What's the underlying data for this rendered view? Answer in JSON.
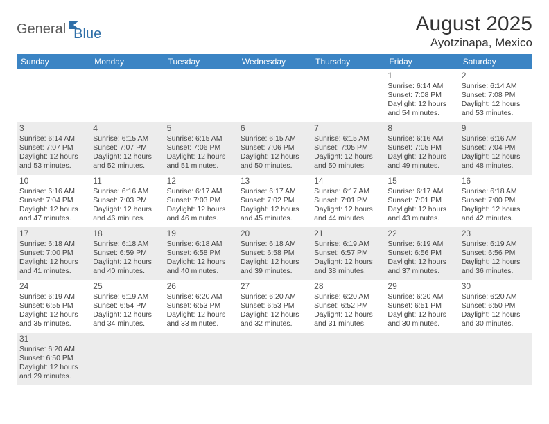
{
  "logo": {
    "part1": "General",
    "part2": "Blue"
  },
  "title": "August 2025",
  "location": "Ayotzinapa, Mexico",
  "colors": {
    "header_bg": "#3b84c4",
    "header_text": "#ffffff",
    "alt_row": "#ececec",
    "logo_gray": "#5a5a5a",
    "logo_blue": "#2f6fa8"
  },
  "day_headers": [
    "Sunday",
    "Monday",
    "Tuesday",
    "Wednesday",
    "Thursday",
    "Friday",
    "Saturday"
  ],
  "weeks": [
    [
      null,
      null,
      null,
      null,
      null,
      {
        "n": "1",
        "sr": "6:14 AM",
        "ss": "7:08 PM",
        "dl": "12 hours and 54 minutes."
      },
      {
        "n": "2",
        "sr": "6:14 AM",
        "ss": "7:08 PM",
        "dl": "12 hours and 53 minutes."
      }
    ],
    [
      {
        "n": "3",
        "sr": "6:14 AM",
        "ss": "7:07 PM",
        "dl": "12 hours and 53 minutes."
      },
      {
        "n": "4",
        "sr": "6:15 AM",
        "ss": "7:07 PM",
        "dl": "12 hours and 52 minutes."
      },
      {
        "n": "5",
        "sr": "6:15 AM",
        "ss": "7:06 PM",
        "dl": "12 hours and 51 minutes."
      },
      {
        "n": "6",
        "sr": "6:15 AM",
        "ss": "7:06 PM",
        "dl": "12 hours and 50 minutes."
      },
      {
        "n": "7",
        "sr": "6:15 AM",
        "ss": "7:05 PM",
        "dl": "12 hours and 50 minutes."
      },
      {
        "n": "8",
        "sr": "6:16 AM",
        "ss": "7:05 PM",
        "dl": "12 hours and 49 minutes."
      },
      {
        "n": "9",
        "sr": "6:16 AM",
        "ss": "7:04 PM",
        "dl": "12 hours and 48 minutes."
      }
    ],
    [
      {
        "n": "10",
        "sr": "6:16 AM",
        "ss": "7:04 PM",
        "dl": "12 hours and 47 minutes."
      },
      {
        "n": "11",
        "sr": "6:16 AM",
        "ss": "7:03 PM",
        "dl": "12 hours and 46 minutes."
      },
      {
        "n": "12",
        "sr": "6:17 AM",
        "ss": "7:03 PM",
        "dl": "12 hours and 46 minutes."
      },
      {
        "n": "13",
        "sr": "6:17 AM",
        "ss": "7:02 PM",
        "dl": "12 hours and 45 minutes."
      },
      {
        "n": "14",
        "sr": "6:17 AM",
        "ss": "7:01 PM",
        "dl": "12 hours and 44 minutes."
      },
      {
        "n": "15",
        "sr": "6:17 AM",
        "ss": "7:01 PM",
        "dl": "12 hours and 43 minutes."
      },
      {
        "n": "16",
        "sr": "6:18 AM",
        "ss": "7:00 PM",
        "dl": "12 hours and 42 minutes."
      }
    ],
    [
      {
        "n": "17",
        "sr": "6:18 AM",
        "ss": "7:00 PM",
        "dl": "12 hours and 41 minutes."
      },
      {
        "n": "18",
        "sr": "6:18 AM",
        "ss": "6:59 PM",
        "dl": "12 hours and 40 minutes."
      },
      {
        "n": "19",
        "sr": "6:18 AM",
        "ss": "6:58 PM",
        "dl": "12 hours and 40 minutes."
      },
      {
        "n": "20",
        "sr": "6:18 AM",
        "ss": "6:58 PM",
        "dl": "12 hours and 39 minutes."
      },
      {
        "n": "21",
        "sr": "6:19 AM",
        "ss": "6:57 PM",
        "dl": "12 hours and 38 minutes."
      },
      {
        "n": "22",
        "sr": "6:19 AM",
        "ss": "6:56 PM",
        "dl": "12 hours and 37 minutes."
      },
      {
        "n": "23",
        "sr": "6:19 AM",
        "ss": "6:56 PM",
        "dl": "12 hours and 36 minutes."
      }
    ],
    [
      {
        "n": "24",
        "sr": "6:19 AM",
        "ss": "6:55 PM",
        "dl": "12 hours and 35 minutes."
      },
      {
        "n": "25",
        "sr": "6:19 AM",
        "ss": "6:54 PM",
        "dl": "12 hours and 34 minutes."
      },
      {
        "n": "26",
        "sr": "6:20 AM",
        "ss": "6:53 PM",
        "dl": "12 hours and 33 minutes."
      },
      {
        "n": "27",
        "sr": "6:20 AM",
        "ss": "6:53 PM",
        "dl": "12 hours and 32 minutes."
      },
      {
        "n": "28",
        "sr": "6:20 AM",
        "ss": "6:52 PM",
        "dl": "12 hours and 31 minutes."
      },
      {
        "n": "29",
        "sr": "6:20 AM",
        "ss": "6:51 PM",
        "dl": "12 hours and 30 minutes."
      },
      {
        "n": "30",
        "sr": "6:20 AM",
        "ss": "6:50 PM",
        "dl": "12 hours and 30 minutes."
      }
    ],
    [
      {
        "n": "31",
        "sr": "6:20 AM",
        "ss": "6:50 PM",
        "dl": "12 hours and 29 minutes."
      },
      null,
      null,
      null,
      null,
      null,
      null
    ]
  ],
  "labels": {
    "sunrise": "Sunrise:",
    "sunset": "Sunset:",
    "daylight": "Daylight:"
  }
}
